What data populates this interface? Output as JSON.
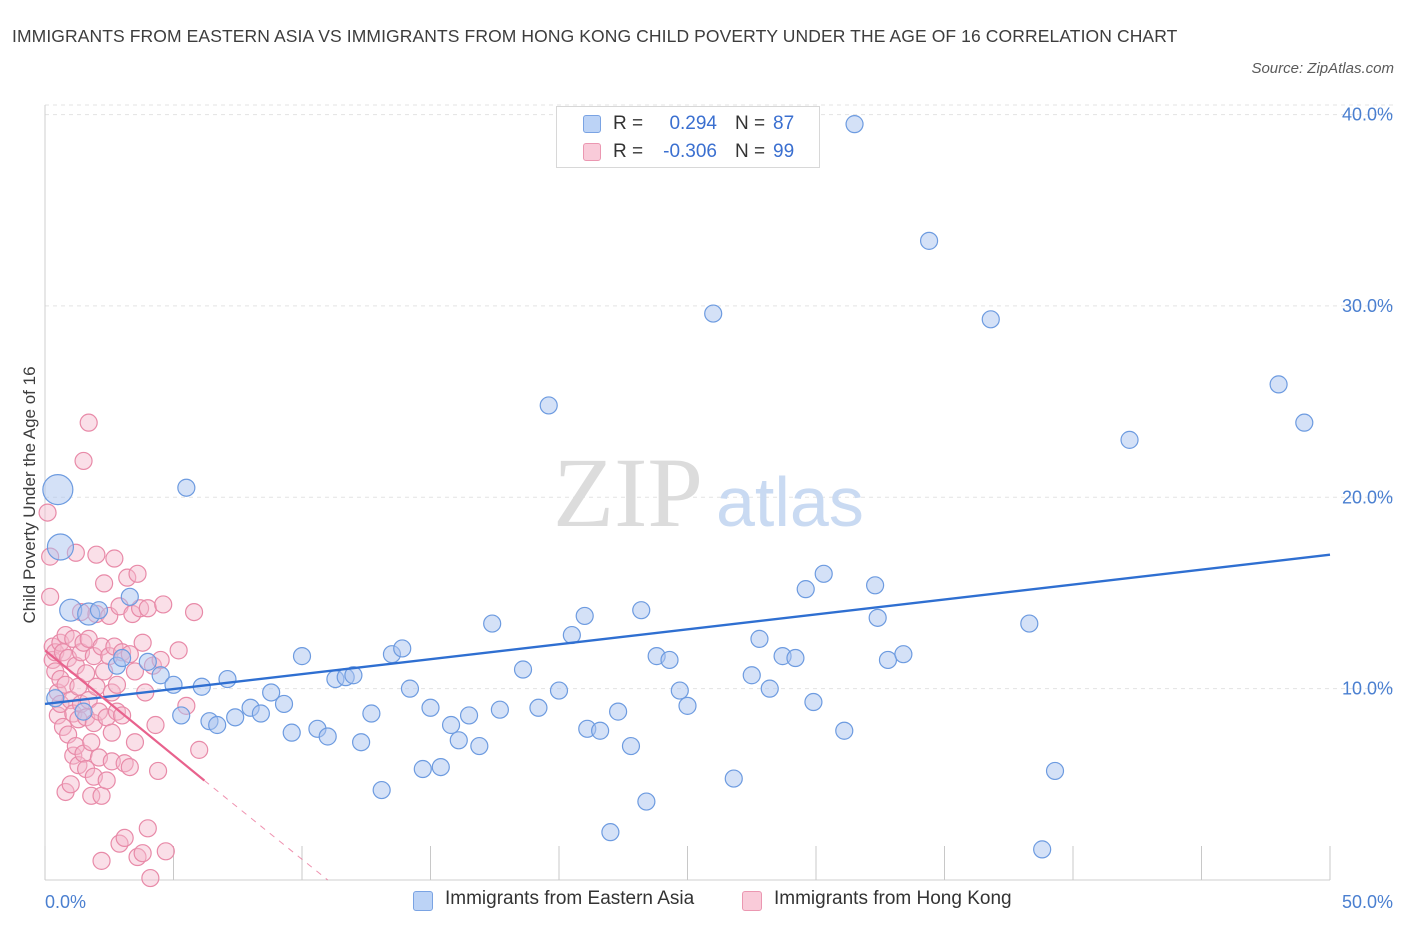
{
  "header": {
    "title": "IMMIGRANTS FROM EASTERN ASIA VS IMMIGRANTS FROM HONG KONG CHILD POVERTY UNDER THE AGE OF 16 CORRELATION CHART",
    "source": "Source: ZipAtlas.com"
  },
  "watermark": {
    "zip": "ZIP",
    "atlas": "atlas"
  },
  "legend": {
    "rows": [
      {
        "r_label": "R =",
        "r_value": "0.294",
        "n_label": "N =",
        "n_value": "87",
        "color": "#a9c4f0"
      },
      {
        "r_label": "R =",
        "r_value": "-0.306",
        "n_label": "N =",
        "n_value": "99",
        "color": "#f5b8cb"
      }
    ]
  },
  "bottom_legend": [
    {
      "label": "Immigrants from Eastern Asia",
      "color": "#a9c4f0"
    },
    {
      "label": "Immigrants from Hong Kong",
      "color": "#f5b8cb"
    }
  ],
  "colors": {
    "blue_fill": "#a9c4f0",
    "blue_stroke": "#6d9be0",
    "blue_line": "#2f6fd1",
    "pink_fill": "#f5b8cb",
    "pink_stroke": "#e88aa8",
    "pink_line": "#e8628d",
    "grid": "#e3e3e3",
    "tick_text": "#4a7fd0"
  },
  "chart_data": {
    "type": "scatter",
    "title": "IMMIGRANTS FROM EASTERN ASIA VS IMMIGRANTS FROM HONG KONG CHILD POVERTY UNDER THE AGE OF 16 CORRELATION CHART",
    "xlabel": "",
    "ylabel": "Child Poverty Under the Age of 16",
    "xlim": [
      0,
      50
    ],
    "ylim": [
      0,
      40.5
    ],
    "x_tick_labels": [
      "0.0%",
      "50.0%"
    ],
    "y_ticks": [
      10,
      20,
      30,
      40
    ],
    "y_tick_labels": [
      "10.0%",
      "20.0%",
      "30.0%",
      "40.0%"
    ],
    "grid": "horizontal dashed",
    "legend_position": "top-center",
    "series": [
      {
        "name": "Immigrants from Eastern Asia",
        "r": 0.294,
        "n": 87,
        "trend": {
          "x": [
            0,
            50
          ],
          "y": [
            9.2,
            17.0
          ]
        },
        "points": [
          [
            0.5,
            20.4
          ],
          [
            0.6,
            17.4
          ],
          [
            1.0,
            14.1
          ],
          [
            1.7,
            13.9
          ],
          [
            2.1,
            14.1
          ],
          [
            2.8,
            11.2
          ],
          [
            3.0,
            11.6
          ],
          [
            3.3,
            14.8
          ],
          [
            4.0,
            11.4
          ],
          [
            4.5,
            10.7
          ],
          [
            5.0,
            10.2
          ],
          [
            5.3,
            8.6
          ],
          [
            5.5,
            20.5
          ],
          [
            6.1,
            10.1
          ],
          [
            6.4,
            8.3
          ],
          [
            6.7,
            8.1
          ],
          [
            7.1,
            10.5
          ],
          [
            7.4,
            8.5
          ],
          [
            8.0,
            9.0
          ],
          [
            8.4,
            8.7
          ],
          [
            8.8,
            9.8
          ],
          [
            9.3,
            9.2
          ],
          [
            9.6,
            7.7
          ],
          [
            10.0,
            11.7
          ],
          [
            10.6,
            7.9
          ],
          [
            11.0,
            7.5
          ],
          [
            11.3,
            10.5
          ],
          [
            11.7,
            10.6
          ],
          [
            12.0,
            10.7
          ],
          [
            12.3,
            7.2
          ],
          [
            12.7,
            8.7
          ],
          [
            13.1,
            4.7
          ],
          [
            13.5,
            11.8
          ],
          [
            13.9,
            12.1
          ],
          [
            14.2,
            10.0
          ],
          [
            14.7,
            5.8
          ],
          [
            15.0,
            9.0
          ],
          [
            15.4,
            5.9
          ],
          [
            15.8,
            8.1
          ],
          [
            16.1,
            7.3
          ],
          [
            16.5,
            8.6
          ],
          [
            16.9,
            7.0
          ],
          [
            17.4,
            13.4
          ],
          [
            17.7,
            8.9
          ],
          [
            18.6,
            11.0
          ],
          [
            19.2,
            9.0
          ],
          [
            19.6,
            24.8
          ],
          [
            20.0,
            9.9
          ],
          [
            20.5,
            12.8
          ],
          [
            21.0,
            13.8
          ],
          [
            21.1,
            7.9
          ],
          [
            21.6,
            7.8
          ],
          [
            22.0,
            2.5
          ],
          [
            22.3,
            8.8
          ],
          [
            22.8,
            7.0
          ],
          [
            23.2,
            14.1
          ],
          [
            23.4,
            4.1
          ],
          [
            23.8,
            11.7
          ],
          [
            24.3,
            11.5
          ],
          [
            24.7,
            9.9
          ],
          [
            25.0,
            9.1
          ],
          [
            26.0,
            29.6
          ],
          [
            26.8,
            5.3
          ],
          [
            27.5,
            10.7
          ],
          [
            27.8,
            12.6
          ],
          [
            28.2,
            10.0
          ],
          [
            28.7,
            11.7
          ],
          [
            29.2,
            11.6
          ],
          [
            29.6,
            15.2
          ],
          [
            29.9,
            9.3
          ],
          [
            30.3,
            16.0
          ],
          [
            31.1,
            7.8
          ],
          [
            31.5,
            39.5
          ],
          [
            32.3,
            15.4
          ],
          [
            32.4,
            13.7
          ],
          [
            32.8,
            11.5
          ],
          [
            33.4,
            11.8
          ],
          [
            34.4,
            33.4
          ],
          [
            36.8,
            29.3
          ],
          [
            38.3,
            13.4
          ],
          [
            38.8,
            1.6
          ],
          [
            39.3,
            5.7
          ],
          [
            42.2,
            23.0
          ],
          [
            48.0,
            25.9
          ],
          [
            49.0,
            23.9
          ],
          [
            0.4,
            9.5
          ],
          [
            1.5,
            8.8
          ]
        ]
      },
      {
        "name": "Immigrants from Hong Kong",
        "r": -0.306,
        "n": 99,
        "trend": {
          "x": [
            0,
            6.2
          ],
          "y": [
            12.0,
            5.2
          ]
        },
        "trend_extension": {
          "x": [
            6.2,
            11.0
          ],
          "y": [
            5.2,
            0.0
          ]
        },
        "points": [
          [
            0.1,
            19.2
          ],
          [
            0.2,
            16.9
          ],
          [
            0.2,
            14.8
          ],
          [
            0.3,
            12.2
          ],
          [
            0.3,
            11.5
          ],
          [
            0.4,
            10.9
          ],
          [
            0.4,
            11.9
          ],
          [
            0.5,
            9.8
          ],
          [
            0.5,
            8.6
          ],
          [
            0.6,
            12.4
          ],
          [
            0.6,
            10.5
          ],
          [
            0.6,
            9.2
          ],
          [
            0.7,
            11.9
          ],
          [
            0.7,
            8.0
          ],
          [
            0.8,
            12.8
          ],
          [
            0.8,
            10.2
          ],
          [
            0.8,
            4.6
          ],
          [
            0.9,
            11.6
          ],
          [
            0.9,
            7.6
          ],
          [
            1.0,
            9.4
          ],
          [
            1.0,
            5.0
          ],
          [
            1.1,
            12.6
          ],
          [
            1.1,
            8.7
          ],
          [
            1.1,
            6.5
          ],
          [
            1.2,
            17.1
          ],
          [
            1.2,
            11.2
          ],
          [
            1.2,
            7.0
          ],
          [
            1.3,
            10.1
          ],
          [
            1.3,
            8.4
          ],
          [
            1.3,
            6.0
          ],
          [
            1.4,
            14.0
          ],
          [
            1.4,
            11.9
          ],
          [
            1.4,
            9.2
          ],
          [
            1.5,
            6.6
          ],
          [
            1.5,
            21.9
          ],
          [
            1.5,
            12.4
          ],
          [
            1.6,
            10.8
          ],
          [
            1.6,
            8.5
          ],
          [
            1.6,
            5.8
          ],
          [
            1.7,
            23.9
          ],
          [
            1.7,
            12.6
          ],
          [
            1.7,
            9.4
          ],
          [
            1.8,
            7.2
          ],
          [
            1.8,
            4.4
          ],
          [
            1.9,
            11.7
          ],
          [
            1.9,
            8.2
          ],
          [
            1.9,
            5.4
          ],
          [
            2.0,
            17.0
          ],
          [
            2.0,
            13.9
          ],
          [
            2.0,
            10.1
          ],
          [
            2.1,
            8.8
          ],
          [
            2.1,
            6.4
          ],
          [
            2.2,
            12.2
          ],
          [
            2.2,
            4.4
          ],
          [
            2.2,
            1.0
          ],
          [
            2.3,
            15.5
          ],
          [
            2.3,
            10.9
          ],
          [
            2.4,
            8.5
          ],
          [
            2.4,
            5.2
          ],
          [
            2.5,
            13.8
          ],
          [
            2.5,
            11.7
          ],
          [
            2.6,
            9.8
          ],
          [
            2.6,
            7.7
          ],
          [
            2.6,
            6.2
          ],
          [
            2.7,
            16.8
          ],
          [
            2.7,
            12.2
          ],
          [
            2.8,
            8.8
          ],
          [
            2.8,
            10.2
          ],
          [
            2.9,
            14.3
          ],
          [
            2.9,
            1.9
          ],
          [
            3.0,
            11.9
          ],
          [
            3.0,
            8.6
          ],
          [
            3.1,
            6.1
          ],
          [
            3.1,
            2.2
          ],
          [
            3.2,
            15.8
          ],
          [
            3.3,
            11.8
          ],
          [
            3.3,
            5.9
          ],
          [
            3.4,
            13.9
          ],
          [
            3.5,
            10.9
          ],
          [
            3.5,
            7.2
          ],
          [
            3.6,
            16.0
          ],
          [
            3.6,
            1.2
          ],
          [
            3.7,
            14.2
          ],
          [
            3.8,
            12.4
          ],
          [
            3.8,
            1.4
          ],
          [
            3.9,
            9.8
          ],
          [
            4.0,
            14.2
          ],
          [
            4.0,
            2.7
          ],
          [
            4.1,
            0.1
          ],
          [
            4.2,
            11.2
          ],
          [
            4.3,
            8.1
          ],
          [
            4.4,
            5.7
          ],
          [
            4.5,
            11.5
          ],
          [
            4.6,
            14.4
          ],
          [
            4.7,
            1.5
          ],
          [
            5.2,
            12.0
          ],
          [
            5.5,
            9.1
          ],
          [
            5.8,
            14.0
          ],
          [
            6.0,
            6.8
          ]
        ]
      }
    ]
  }
}
